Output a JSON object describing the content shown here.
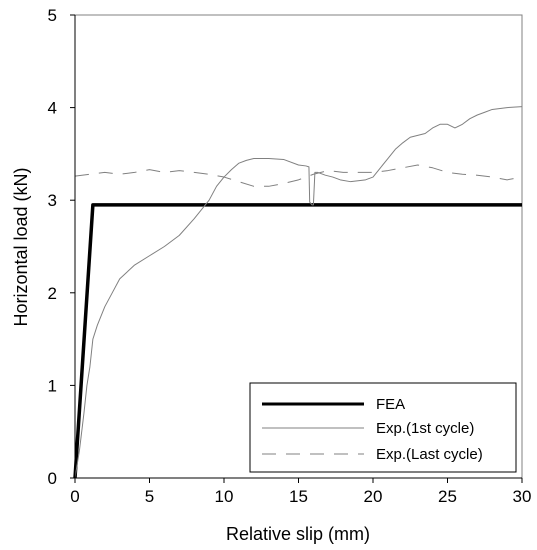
{
  "chart_data": {
    "type": "line",
    "title": "",
    "xlabel": "Relative slip (mm)",
    "ylabel": "Horizontal load (kN)",
    "xlim": [
      0,
      30
    ],
    "ylim": [
      0,
      5
    ],
    "xticks": [
      0,
      5,
      10,
      15,
      20,
      25,
      30
    ],
    "yticks": [
      0,
      1,
      2,
      3,
      4,
      5
    ],
    "grid": false,
    "legend_position": "bottom-right",
    "series": [
      {
        "name": "FEA",
        "color": "#000000",
        "style": "solid-thick",
        "x": [
          0,
          1.2,
          30
        ],
        "y": [
          0,
          2.95,
          2.95
        ]
      },
      {
        "name": "Exp.(1st cycle)",
        "color": "#808080",
        "style": "solid-thin",
        "x": [
          0,
          0.3,
          0.6,
          0.8,
          1.0,
          1.2,
          1.5,
          2.0,
          2.5,
          3.0,
          4.0,
          5.0,
          6.0,
          7.0,
          8.0,
          8.5,
          9.0,
          9.5,
          10.0,
          10.5,
          11.0,
          11.5,
          12.0,
          13.0,
          14.0,
          15.0,
          15.5,
          15.7,
          15.75,
          15.9,
          16.0,
          16.1,
          16.3,
          16.8,
          17.3,
          17.8,
          18.5,
          19.0,
          19.5,
          20.0,
          20.5,
          21.0,
          21.5,
          22.0,
          22.5,
          23.0,
          23.5,
          24.0,
          24.5,
          25.0,
          25.5,
          26.0,
          26.5,
          27.0,
          27.5,
          28.0,
          29.0,
          30.0
        ],
        "y": [
          0,
          0.3,
          0.7,
          1.0,
          1.2,
          1.5,
          1.65,
          1.85,
          2.0,
          2.15,
          2.3,
          2.4,
          2.5,
          2.62,
          2.8,
          2.9,
          3.0,
          3.15,
          3.25,
          3.33,
          3.4,
          3.43,
          3.45,
          3.45,
          3.44,
          3.38,
          3.37,
          3.36,
          2.98,
          2.95,
          2.95,
          3.3,
          3.3,
          3.27,
          3.25,
          3.22,
          3.2,
          3.21,
          3.22,
          3.25,
          3.35,
          3.45,
          3.55,
          3.62,
          3.68,
          3.7,
          3.72,
          3.78,
          3.82,
          3.82,
          3.78,
          3.82,
          3.88,
          3.92,
          3.95,
          3.98,
          4.0,
          4.01
        ]
      },
      {
        "name": "Exp.(Last cycle)",
        "color": "#808080",
        "style": "dashed-thin",
        "x": [
          0,
          1.0,
          2.0,
          3.0,
          4.0,
          5.0,
          6.0,
          7.0,
          8.0,
          9.0,
          10.0,
          11.0,
          12.0,
          13.0,
          14.0,
          15.0,
          16.0,
          17.0,
          18.0,
          19.0,
          20.0,
          21.0,
          22.0,
          23.0,
          24.0,
          25.0,
          26.0,
          27.0,
          28.0,
          29.0,
          30.0
        ],
        "y": [
          3.26,
          3.28,
          3.3,
          3.28,
          3.3,
          3.33,
          3.3,
          3.32,
          3.3,
          3.28,
          3.25,
          3.2,
          3.15,
          3.15,
          3.18,
          3.22,
          3.28,
          3.32,
          3.3,
          3.3,
          3.3,
          3.32,
          3.35,
          3.38,
          3.35,
          3.3,
          3.28,
          3.27,
          3.25,
          3.22,
          3.25
        ]
      }
    ]
  }
}
